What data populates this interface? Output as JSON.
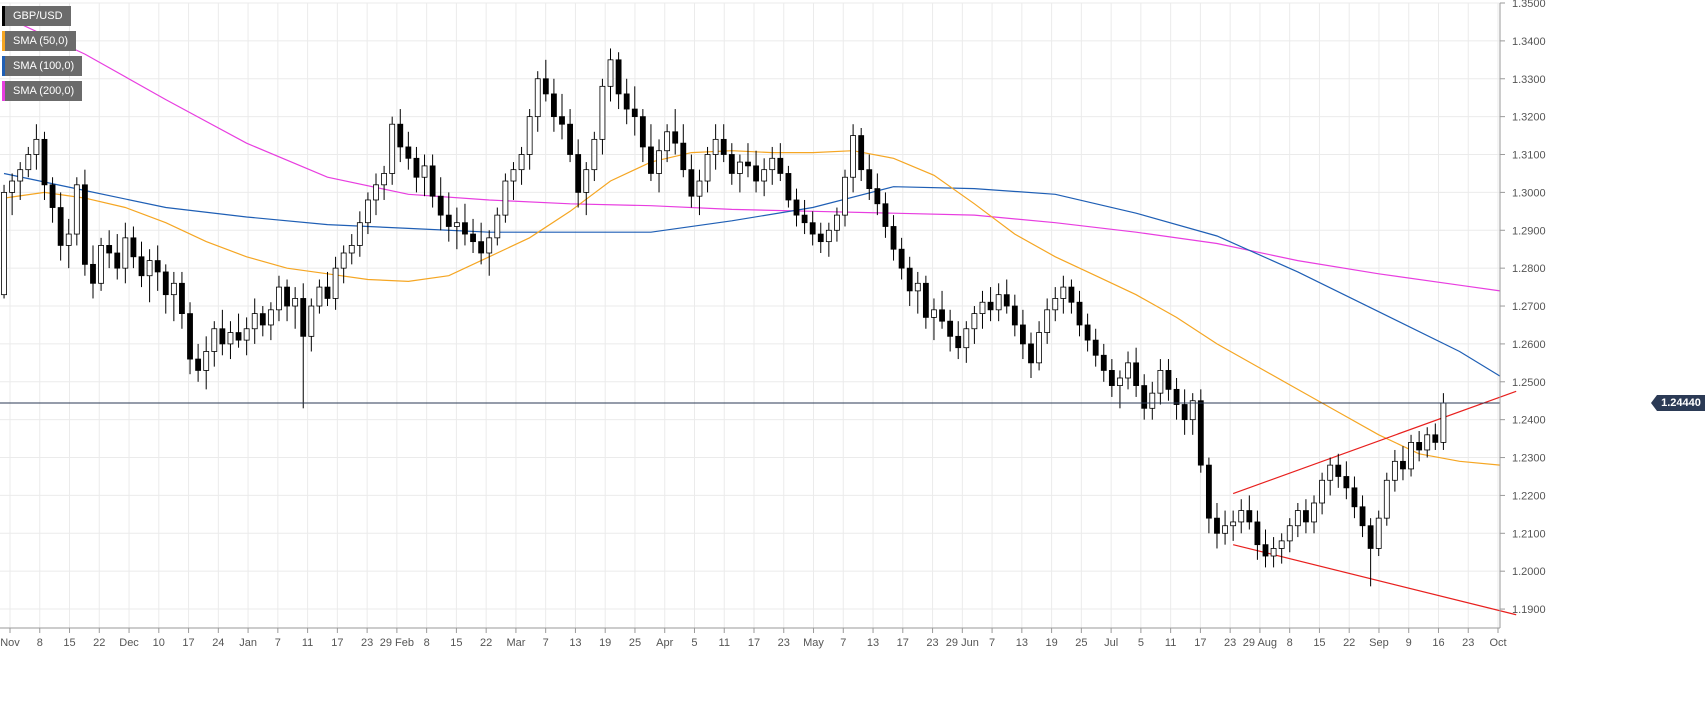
{
  "legend": [
    {
      "label": "GBP/USD",
      "color": "#000000"
    },
    {
      "label": "SMA (50,0)",
      "color": "#f5a623"
    },
    {
      "label": "SMA (100,0)",
      "color": "#1f5fb5"
    },
    {
      "label": "SMA (200,0)",
      "color": "#e83ee0"
    }
  ],
  "price_tag": "1.24440",
  "chart_data": {
    "type": "candlestick",
    "symbol": "GBP/USD",
    "ylim": [
      1.185,
      1.35
    ],
    "y_ticks": [
      "1.3500",
      "1.3400",
      "1.3300",
      "1.3200",
      "1.3100",
      "1.3000",
      "1.2900",
      "1.2800",
      "1.2700",
      "1.2600",
      "1.2500",
      "1.2400",
      "1.2300",
      "1.2200",
      "1.2100",
      "1.2000",
      "1.1900"
    ],
    "x_ticks": [
      "Nov",
      "8",
      "15",
      "22",
      "Dec",
      "10",
      "17",
      "24",
      "Jan",
      "7",
      "11",
      "17",
      "23",
      "29 Feb",
      "8",
      "15",
      "22",
      "Mar",
      "7",
      "13",
      "19",
      "25",
      "Apr",
      "5",
      "11",
      "17",
      "23",
      "May",
      "7",
      "13",
      "17",
      "23",
      "29 Jun",
      "7",
      "13",
      "19",
      "25",
      "Jul",
      "5",
      "11",
      "17",
      "23",
      "29 Aug",
      "8",
      "15",
      "22",
      "Sep",
      "9",
      "16",
      "23",
      "Oct"
    ],
    "current_price": 1.2444,
    "colors": {
      "up": "#ffffff",
      "down": "#000000",
      "sma50": "#f5a623",
      "sma100": "#1f5fb5",
      "sma200": "#e83ee0",
      "trend": "#e8201e",
      "price_line": "#2b3a55"
    },
    "ohlc": [
      [
        1.273,
        1.302,
        1.272,
        1.3
      ],
      [
        1.3,
        1.305,
        1.294,
        1.303
      ],
      [
        1.303,
        1.308,
        1.298,
        1.306
      ],
      [
        1.306,
        1.312,
        1.304,
        1.31
      ],
      [
        1.31,
        1.318,
        1.306,
        1.314
      ],
      [
        1.314,
        1.316,
        1.298,
        1.302
      ],
      [
        1.302,
        1.304,
        1.292,
        1.296
      ],
      [
        1.296,
        1.3,
        1.282,
        1.286
      ],
      [
        1.286,
        1.293,
        1.28,
        1.289
      ],
      [
        1.289,
        1.304,
        1.286,
        1.302
      ],
      [
        1.302,
        1.306,
        1.278,
        1.281
      ],
      [
        1.281,
        1.286,
        1.272,
        1.276
      ],
      [
        1.276,
        1.288,
        1.274,
        1.286
      ],
      [
        1.286,
        1.29,
        1.28,
        1.284
      ],
      [
        1.284,
        1.289,
        1.277,
        1.28
      ],
      [
        1.28,
        1.292,
        1.276,
        1.288
      ],
      [
        1.288,
        1.291,
        1.28,
        1.283
      ],
      [
        1.283,
        1.287,
        1.275,
        1.278
      ],
      [
        1.278,
        1.285,
        1.271,
        1.282
      ],
      [
        1.282,
        1.286,
        1.274,
        1.279
      ],
      [
        1.279,
        1.281,
        1.268,
        1.273
      ],
      [
        1.273,
        1.279,
        1.266,
        1.276
      ],
      [
        1.276,
        1.279,
        1.264,
        1.268
      ],
      [
        1.268,
        1.271,
        1.252,
        1.256
      ],
      [
        1.256,
        1.26,
        1.25,
        1.253
      ],
      [
        1.253,
        1.262,
        1.248,
        1.258
      ],
      [
        1.258,
        1.266,
        1.254,
        1.264
      ],
      [
        1.264,
        1.269,
        1.257,
        1.26
      ],
      [
        1.26,
        1.266,
        1.256,
        1.263
      ],
      [
        1.263,
        1.268,
        1.259,
        1.261
      ],
      [
        1.261,
        1.267,
        1.257,
        1.264
      ],
      [
        1.264,
        1.272,
        1.26,
        1.268
      ],
      [
        1.268,
        1.27,
        1.262,
        1.265
      ],
      [
        1.265,
        1.271,
        1.261,
        1.269
      ],
      [
        1.269,
        1.278,
        1.266,
        1.275
      ],
      [
        1.275,
        1.277,
        1.266,
        1.27
      ],
      [
        1.27,
        1.275,
        1.264,
        1.272
      ],
      [
        1.272,
        1.276,
        1.243,
        1.262
      ],
      [
        1.262,
        1.272,
        1.258,
        1.27
      ],
      [
        1.27,
        1.277,
        1.268,
        1.275
      ],
      [
        1.275,
        1.279,
        1.27,
        1.272
      ],
      [
        1.272,
        1.283,
        1.269,
        1.28
      ],
      [
        1.28,
        1.286,
        1.276,
        1.284
      ],
      [
        1.284,
        1.289,
        1.281,
        1.286
      ],
      [
        1.286,
        1.295,
        1.283,
        1.292
      ],
      [
        1.292,
        1.3,
        1.289,
        1.298
      ],
      [
        1.298,
        1.305,
        1.294,
        1.302
      ],
      [
        1.302,
        1.307,
        1.298,
        1.305
      ],
      [
        1.305,
        1.32,
        1.302,
        1.318
      ],
      [
        1.318,
        1.322,
        1.308,
        1.312
      ],
      [
        1.312,
        1.316,
        1.306,
        1.309
      ],
      [
        1.309,
        1.312,
        1.3,
        1.304
      ],
      [
        1.304,
        1.31,
        1.299,
        1.307
      ],
      [
        1.307,
        1.31,
        1.296,
        1.299
      ],
      [
        1.299,
        1.304,
        1.29,
        1.294
      ],
      [
        1.294,
        1.3,
        1.287,
        1.291
      ],
      [
        1.291,
        1.296,
        1.285,
        1.292
      ],
      [
        1.292,
        1.297,
        1.286,
        1.289
      ],
      [
        1.289,
        1.293,
        1.284,
        1.287
      ],
      [
        1.287,
        1.292,
        1.281,
        1.284
      ],
      [
        1.284,
        1.29,
        1.278,
        1.288
      ],
      [
        1.288,
        1.296,
        1.286,
        1.294
      ],
      [
        1.294,
        1.305,
        1.292,
        1.303
      ],
      [
        1.303,
        1.308,
        1.298,
        1.306
      ],
      [
        1.306,
        1.312,
        1.302,
        1.31
      ],
      [
        1.31,
        1.322,
        1.306,
        1.32
      ],
      [
        1.32,
        1.332,
        1.316,
        1.33
      ],
      [
        1.33,
        1.335,
        1.324,
        1.326
      ],
      [
        1.326,
        1.33,
        1.316,
        1.32
      ],
      [
        1.32,
        1.326,
        1.314,
        1.318
      ],
      [
        1.318,
        1.322,
        1.308,
        1.31
      ],
      [
        1.31,
        1.314,
        1.296,
        1.3
      ],
      [
        1.3,
        1.308,
        1.294,
        1.306
      ],
      [
        1.306,
        1.316,
        1.303,
        1.314
      ],
      [
        1.314,
        1.33,
        1.31,
        1.328
      ],
      [
        1.328,
        1.338,
        1.324,
        1.335
      ],
      [
        1.335,
        1.337,
        1.322,
        1.326
      ],
      [
        1.326,
        1.33,
        1.318,
        1.322
      ],
      [
        1.322,
        1.328,
        1.315,
        1.32
      ],
      [
        1.32,
        1.322,
        1.308,
        1.312
      ],
      [
        1.312,
        1.318,
        1.303,
        1.305
      ],
      [
        1.305,
        1.314,
        1.3,
        1.311
      ],
      [
        1.311,
        1.318,
        1.308,
        1.316
      ],
      [
        1.316,
        1.322,
        1.31,
        1.313
      ],
      [
        1.313,
        1.318,
        1.304,
        1.306
      ],
      [
        1.306,
        1.31,
        1.296,
        1.299
      ],
      [
        1.299,
        1.306,
        1.294,
        1.303
      ],
      [
        1.303,
        1.312,
        1.3,
        1.31
      ],
      [
        1.31,
        1.318,
        1.306,
        1.314
      ],
      [
        1.314,
        1.318,
        1.308,
        1.31
      ],
      [
        1.31,
        1.313,
        1.302,
        1.305
      ],
      [
        1.305,
        1.31,
        1.3,
        1.308
      ],
      [
        1.308,
        1.313,
        1.304,
        1.307
      ],
      [
        1.307,
        1.311,
        1.3,
        1.303
      ],
      [
        1.303,
        1.309,
        1.299,
        1.306
      ],
      [
        1.306,
        1.312,
        1.302,
        1.309
      ],
      [
        1.309,
        1.313,
        1.303,
        1.305
      ],
      [
        1.305,
        1.307,
        1.296,
        1.298
      ],
      [
        1.298,
        1.301,
        1.291,
        1.294
      ],
      [
        1.294,
        1.298,
        1.289,
        1.292
      ],
      [
        1.292,
        1.295,
        1.286,
        1.289
      ],
      [
        1.289,
        1.292,
        1.284,
        1.287
      ],
      [
        1.287,
        1.292,
        1.283,
        1.29
      ],
      [
        1.29,
        1.296,
        1.287,
        1.294
      ],
      [
        1.294,
        1.306,
        1.291,
        1.304
      ],
      [
        1.304,
        1.318,
        1.3,
        1.315
      ],
      [
        1.315,
        1.317,
        1.303,
        1.306
      ],
      [
        1.306,
        1.31,
        1.298,
        1.301
      ],
      [
        1.301,
        1.305,
        1.294,
        1.297
      ],
      [
        1.297,
        1.3,
        1.288,
        1.291
      ],
      [
        1.291,
        1.294,
        1.282,
        1.285
      ],
      [
        1.285,
        1.288,
        1.277,
        1.28
      ],
      [
        1.28,
        1.283,
        1.27,
        1.274
      ],
      [
        1.274,
        1.279,
        1.268,
        1.276
      ],
      [
        1.276,
        1.278,
        1.264,
        1.267
      ],
      [
        1.267,
        1.272,
        1.261,
        1.269
      ],
      [
        1.269,
        1.274,
        1.264,
        1.266
      ],
      [
        1.266,
        1.269,
        1.258,
        1.262
      ],
      [
        1.262,
        1.266,
        1.256,
        1.259
      ],
      [
        1.259,
        1.266,
        1.255,
        1.264
      ],
      [
        1.264,
        1.27,
        1.26,
        1.268
      ],
      [
        1.268,
        1.274,
        1.264,
        1.271
      ],
      [
        1.271,
        1.275,
        1.266,
        1.269
      ],
      [
        1.269,
        1.276,
        1.266,
        1.273
      ],
      [
        1.273,
        1.277,
        1.268,
        1.27
      ],
      [
        1.27,
        1.273,
        1.262,
        1.265
      ],
      [
        1.265,
        1.269,
        1.256,
        1.26
      ],
      [
        1.26,
        1.263,
        1.251,
        1.255
      ],
      [
        1.255,
        1.266,
        1.253,
        1.263
      ],
      [
        1.263,
        1.272,
        1.26,
        1.269
      ],
      [
        1.269,
        1.275,
        1.266,
        1.272
      ],
      [
        1.272,
        1.278,
        1.268,
        1.275
      ],
      [
        1.275,
        1.277,
        1.268,
        1.271
      ],
      [
        1.271,
        1.274,
        1.262,
        1.265
      ],
      [
        1.265,
        1.268,
        1.258,
        1.261
      ],
      [
        1.261,
        1.264,
        1.254,
        1.257
      ],
      [
        1.257,
        1.26,
        1.25,
        1.253
      ],
      [
        1.253,
        1.256,
        1.246,
        1.249
      ],
      [
        1.249,
        1.253,
        1.243,
        1.251
      ],
      [
        1.251,
        1.258,
        1.248,
        1.255
      ],
      [
        1.255,
        1.259,
        1.246,
        1.249
      ],
      [
        1.249,
        1.252,
        1.24,
        1.243
      ],
      [
        1.243,
        1.25,
        1.24,
        1.247
      ],
      [
        1.247,
        1.256,
        1.244,
        1.253
      ],
      [
        1.253,
        1.256,
        1.245,
        1.248
      ],
      [
        1.248,
        1.251,
        1.24,
        1.244
      ],
      [
        1.244,
        1.248,
        1.236,
        1.24
      ],
      [
        1.24,
        1.247,
        1.236,
        1.245
      ],
      [
        1.245,
        1.248,
        1.226,
        1.228
      ],
      [
        1.228,
        1.23,
        1.21,
        1.214
      ],
      [
        1.214,
        1.218,
        1.206,
        1.21
      ],
      [
        1.21,
        1.216,
        1.207,
        1.212
      ],
      [
        1.212,
        1.216,
        1.208,
        1.213
      ],
      [
        1.213,
        1.219,
        1.21,
        1.216
      ],
      [
        1.216,
        1.22,
        1.211,
        1.213
      ],
      [
        1.213,
        1.216,
        1.203,
        1.207
      ],
      [
        1.207,
        1.211,
        1.201,
        1.204
      ],
      [
        1.204,
        1.209,
        1.201,
        1.206
      ],
      [
        1.206,
        1.21,
        1.202,
        1.208
      ],
      [
        1.208,
        1.214,
        1.205,
        1.212
      ],
      [
        1.212,
        1.218,
        1.209,
        1.216
      ],
      [
        1.216,
        1.219,
        1.21,
        1.213
      ],
      [
        1.213,
        1.22,
        1.21,
        1.218
      ],
      [
        1.218,
        1.226,
        1.215,
        1.224
      ],
      [
        1.224,
        1.23,
        1.22,
        1.228
      ],
      [
        1.228,
        1.231,
        1.222,
        1.225
      ],
      [
        1.225,
        1.229,
        1.219,
        1.222
      ],
      [
        1.222,
        1.225,
        1.214,
        1.217
      ],
      [
        1.217,
        1.22,
        1.209,
        1.212
      ],
      [
        1.212,
        1.214,
        1.196,
        1.206
      ],
      [
        1.206,
        1.216,
        1.204,
        1.214
      ],
      [
        1.214,
        1.226,
        1.212,
        1.224
      ],
      [
        1.224,
        1.232,
        1.221,
        1.229
      ],
      [
        1.229,
        1.233,
        1.224,
        1.227
      ],
      [
        1.227,
        1.236,
        1.225,
        1.234
      ],
      [
        1.234,
        1.237,
        1.229,
        1.232
      ],
      [
        1.232,
        1.238,
        1.23,
        1.236
      ],
      [
        1.236,
        1.239,
        1.232,
        1.234
      ],
      [
        1.234,
        1.247,
        1.232,
        1.2444
      ]
    ],
    "sma50": [
      [
        0,
        1.2985
      ],
      [
        5,
        1.3
      ],
      [
        10,
        1.2985
      ],
      [
        15,
        1.296
      ],
      [
        20,
        1.292
      ],
      [
        25,
        1.287
      ],
      [
        30,
        1.283
      ],
      [
        35,
        1.28
      ],
      [
        40,
        1.2785
      ],
      [
        45,
        1.277
      ],
      [
        50,
        1.2765
      ],
      [
        55,
        1.278
      ],
      [
        60,
        1.283
      ],
      [
        65,
        1.288
      ],
      [
        70,
        1.295
      ],
      [
        75,
        1.303
      ],
      [
        80,
        1.308
      ],
      [
        85,
        1.3105
      ],
      [
        90,
        1.311
      ],
      [
        95,
        1.3105
      ],
      [
        100,
        1.3105
      ],
      [
        105,
        1.311
      ],
      [
        110,
        1.309
      ],
      [
        115,
        1.3045
      ],
      [
        120,
        1.297
      ],
      [
        125,
        1.289
      ],
      [
        130,
        1.283
      ],
      [
        135,
        1.278
      ],
      [
        140,
        1.273
      ],
      [
        145,
        1.267
      ],
      [
        150,
        1.26
      ],
      [
        155,
        1.254
      ],
      [
        160,
        1.248
      ],
      [
        165,
        1.242
      ],
      [
        170,
        1.236
      ],
      [
        175,
        1.231
      ],
      [
        180,
        1.229
      ],
      [
        185,
        1.228
      ]
    ],
    "sma100": [
      [
        0,
        1.305
      ],
      [
        10,
        1.3005
      ],
      [
        20,
        1.296
      ],
      [
        30,
        1.2935
      ],
      [
        40,
        1.2915
      ],
      [
        50,
        1.2905
      ],
      [
        60,
        1.2895
      ],
      [
        70,
        1.2895
      ],
      [
        80,
        1.2895
      ],
      [
        90,
        1.2925
      ],
      [
        100,
        1.296
      ],
      [
        110,
        1.3015
      ],
      [
        120,
        1.301
      ],
      [
        130,
        1.2995
      ],
      [
        140,
        1.2945
      ],
      [
        150,
        1.2885
      ],
      [
        160,
        1.279
      ],
      [
        170,
        1.2685
      ],
      [
        180,
        1.258
      ],
      [
        185,
        1.2515
      ]
    ],
    "sma200": [
      [
        0,
        1.3465
      ],
      [
        10,
        1.3365
      ],
      [
        20,
        1.3245
      ],
      [
        30,
        1.313
      ],
      [
        40,
        1.304
      ],
      [
        50,
        1.2995
      ],
      [
        60,
        1.298
      ],
      [
        70,
        1.297
      ],
      [
        80,
        1.2965
      ],
      [
        90,
        1.2955
      ],
      [
        100,
        1.295
      ],
      [
        110,
        1.2945
      ],
      [
        120,
        1.294
      ],
      [
        130,
        1.292
      ],
      [
        140,
        1.2895
      ],
      [
        150,
        1.2865
      ],
      [
        160,
        1.282
      ],
      [
        170,
        1.2785
      ],
      [
        180,
        1.2755
      ],
      [
        185,
        1.274
      ]
    ],
    "trend_lines": [
      {
        "from": [
          152,
          1.2205
        ],
        "to": [
          187,
          1.2475
        ]
      },
      {
        "from": [
          152,
          1.207
        ],
        "to": [
          187,
          1.1885
        ]
      }
    ]
  }
}
